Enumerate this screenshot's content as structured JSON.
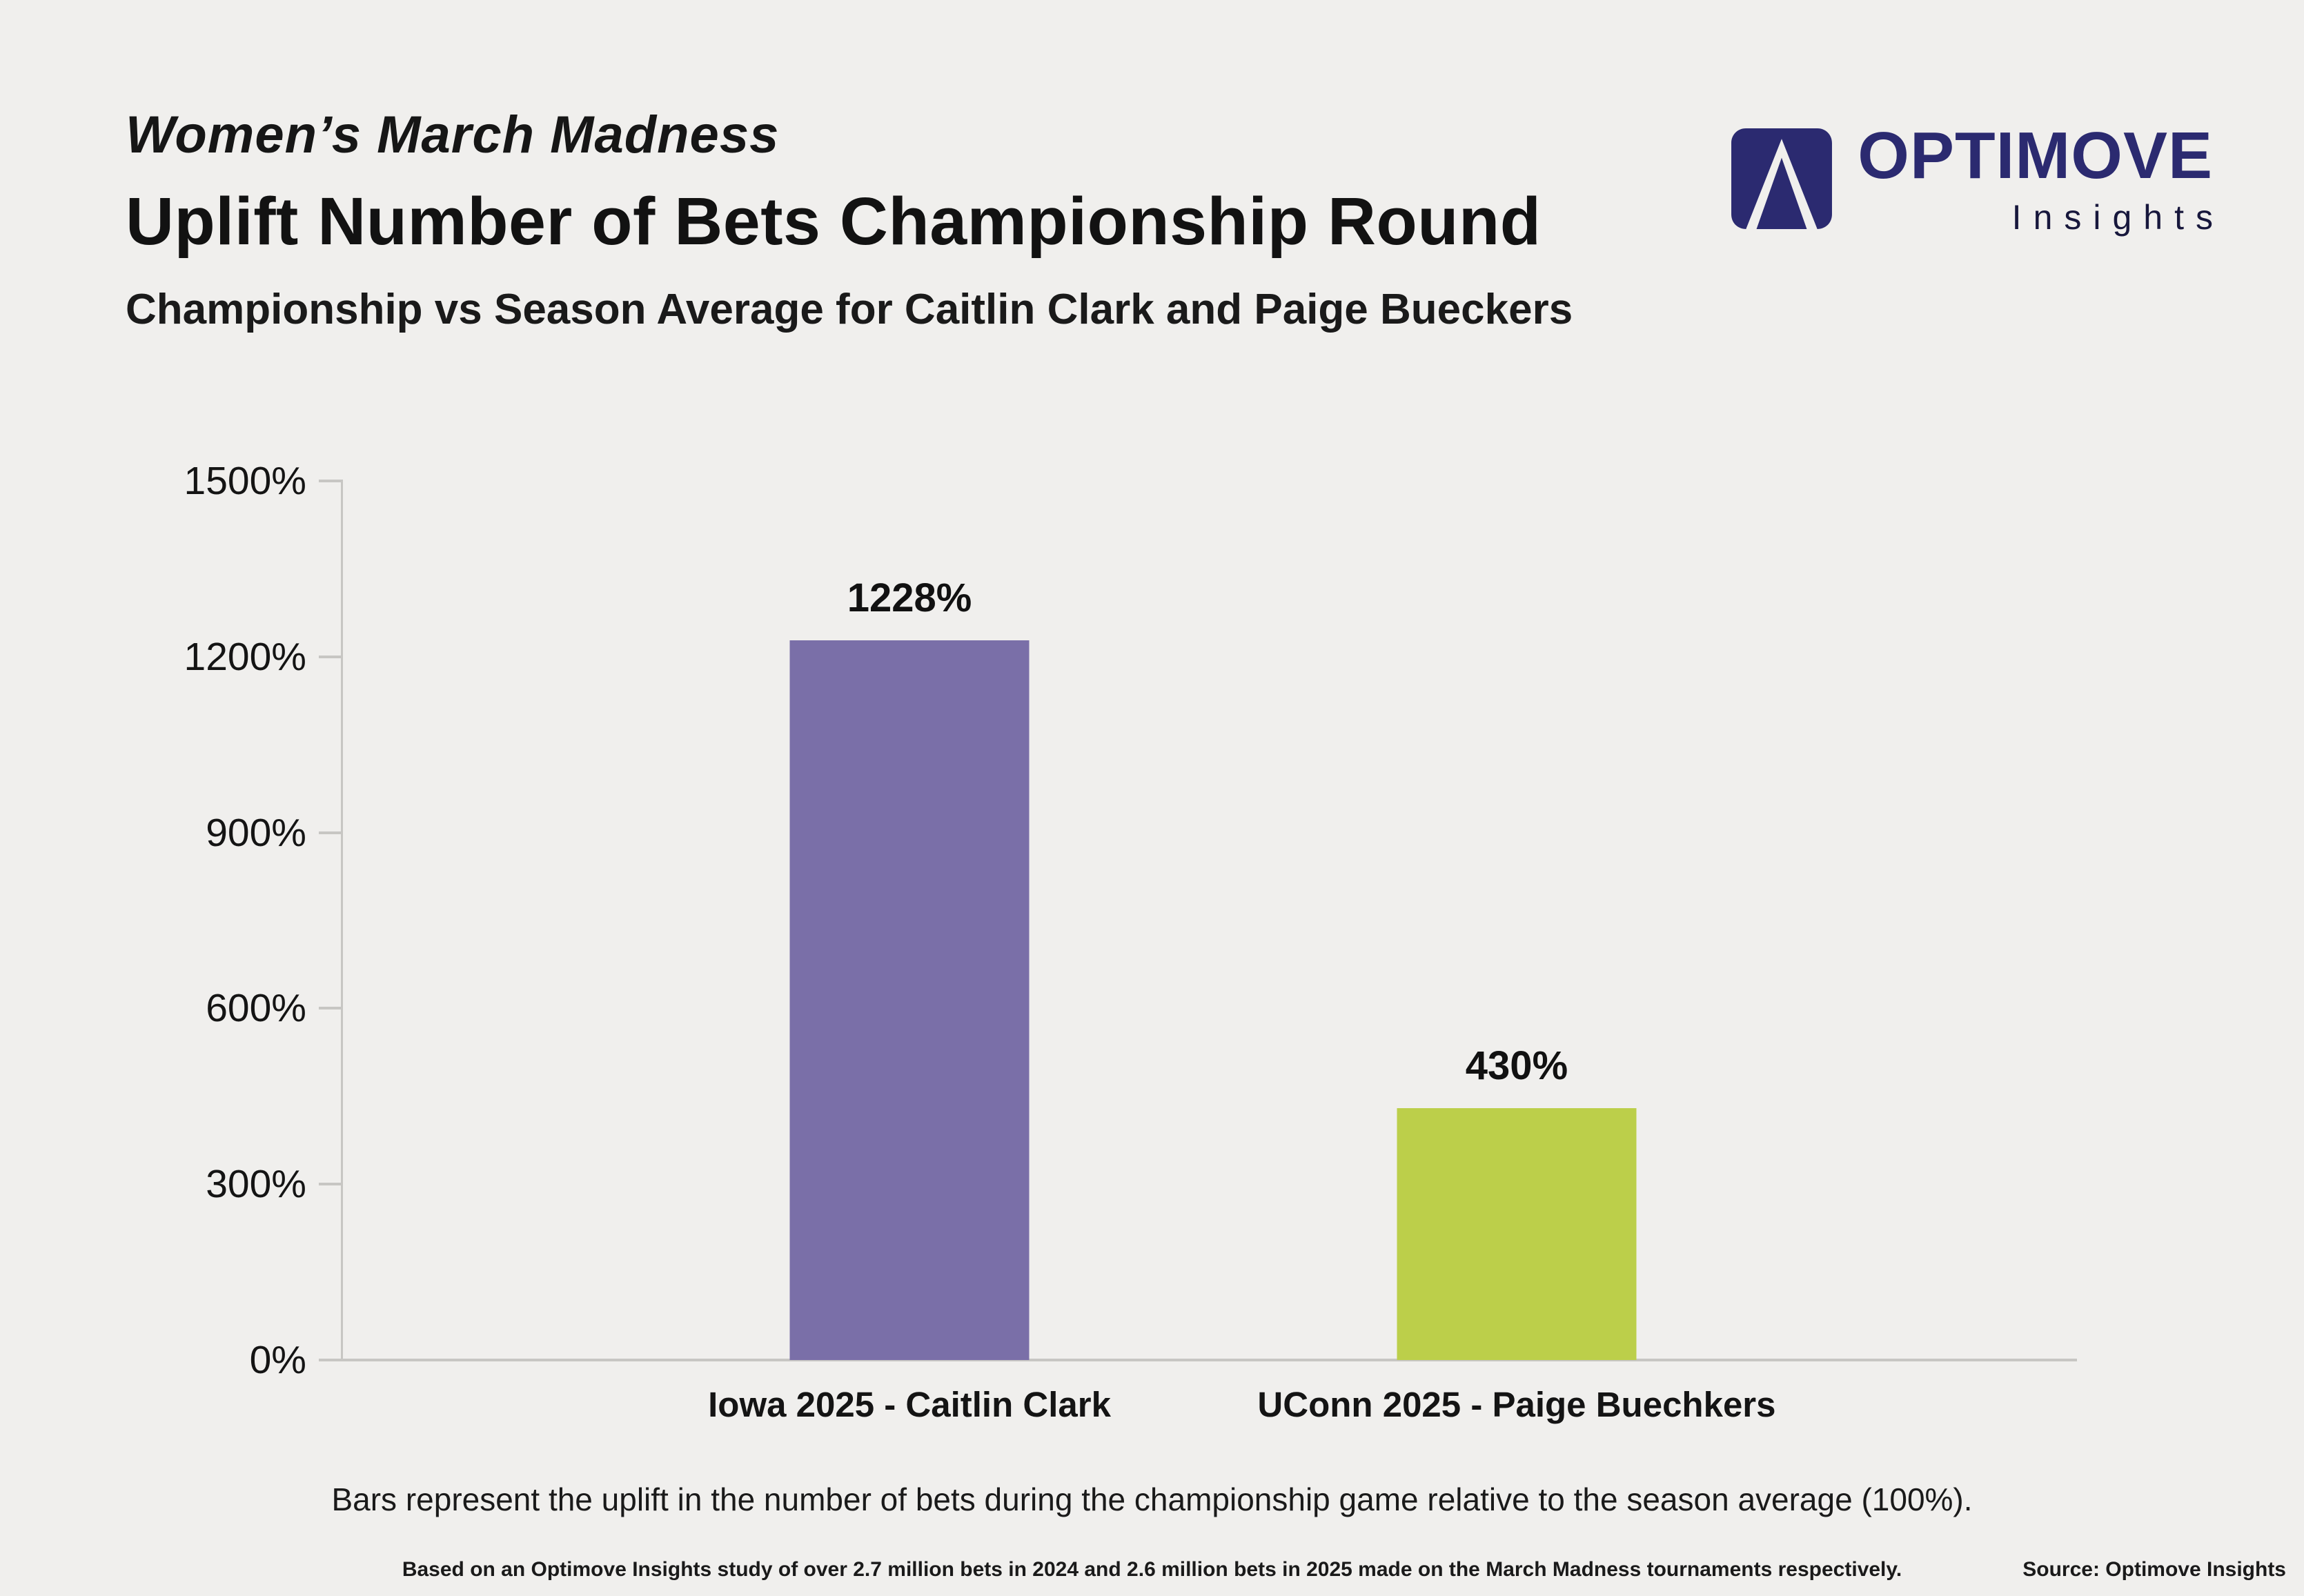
{
  "page": {
    "background": "#F0EFED"
  },
  "header": {
    "kicker": "Women’s March Madness",
    "title": "Uplift Number of Bets Championship Round",
    "subtitle": "Championship vs Season Average for Caitlin Clark and Paige Bueckers"
  },
  "logo": {
    "name": "OPTIMOVE",
    "tagline": "Insights",
    "color": "#2B2A70"
  },
  "chart_data": {
    "type": "bar",
    "title": "Uplift Number of Bets Championship Round",
    "subtitle": "Championship vs Season Average for Caitlin Clark and Paige Bueckers",
    "categories": [
      "Iowa 2025 - Caitlin Clark",
      "UConn 2025 - Paige Buechkers"
    ],
    "values": [
      1228,
      430
    ],
    "value_labels": [
      "1228%",
      "430%"
    ],
    "bar_colors": [
      "#7A6FA8",
      "#BCCF4A"
    ],
    "ylim": [
      0,
      1500
    ],
    "yticks": [
      "1500%",
      "1200%",
      "900%",
      "600%",
      "300%",
      "0%"
    ],
    "ytick_values": [
      1500,
      1200,
      900,
      600,
      300,
      0
    ],
    "grid": false,
    "legend": "none"
  },
  "caption": "Bars represent the uplift in the number of bets during the championship game relative to the season average (100%).",
  "footer": {
    "note": "Based on an Optimove Insights study of over 2.7 million bets in 2024 and 2.6 million bets in 2025 made on the March Madness tournaments respectively.",
    "source": "Source: Optimove Insights"
  }
}
